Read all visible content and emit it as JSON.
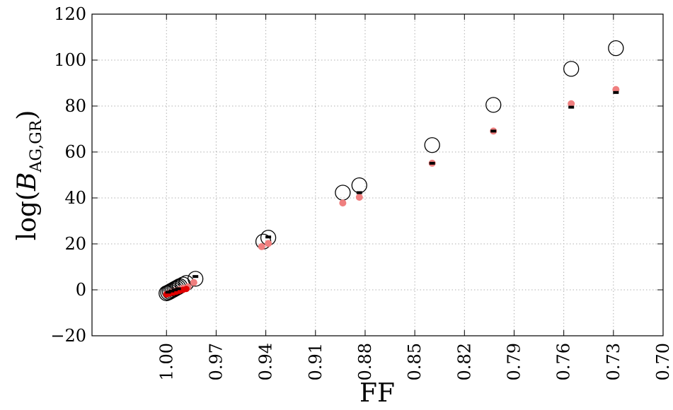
{
  "chart_data": {
    "type": "scatter",
    "xlabel": "FF",
    "ylabel_main": "log(",
    "ylabel_var": "B",
    "ylabel_sub": "AG,GR",
    "ylabel_close": ")",
    "x_reversed": true,
    "xlim": [
      1.045,
      0.7
    ],
    "ylim": [
      -20,
      120
    ],
    "grid": true,
    "xticks": [
      1.0,
      0.97,
      0.94,
      0.91,
      0.88,
      0.85,
      0.82,
      0.79,
      0.76,
      0.73,
      0.7
    ],
    "xtick_labels": [
      "1.00",
      "0.97",
      "0.94",
      "0.91",
      "0.88",
      "0.85",
      "0.82",
      "0.79",
      "0.76",
      "0.73",
      "0.70"
    ],
    "yticks": [
      -20,
      0,
      20,
      40,
      60,
      80,
      100,
      120
    ],
    "ytick_labels": [
      "−20",
      "0",
      "20",
      "40",
      "60",
      "80",
      "100",
      "120"
    ],
    "series": [
      {
        "marker": "open-circle-large",
        "color": "#000000",
        "points": [
          {
            "x": 1.0,
            "y": -1.5
          },
          {
            "x": 0.999,
            "y": -1.2
          },
          {
            "x": 0.998,
            "y": -0.8
          },
          {
            "x": 0.997,
            "y": -0.4
          },
          {
            "x": 0.996,
            "y": 0.0
          },
          {
            "x": 0.995,
            "y": 0.4
          },
          {
            "x": 0.994,
            "y": 0.8
          },
          {
            "x": 0.993,
            "y": 1.2
          },
          {
            "x": 0.992,
            "y": 1.6
          },
          {
            "x": 0.99,
            "y": 2.3
          },
          {
            "x": 0.988,
            "y": 3.0
          },
          {
            "x": 0.9825,
            "y": 4.8
          },
          {
            "x": 0.9415,
            "y": 21.0
          },
          {
            "x": 0.9385,
            "y": 22.7
          },
          {
            "x": 0.8935,
            "y": 42.3
          },
          {
            "x": 0.8835,
            "y": 45.5
          },
          {
            "x": 0.8395,
            "y": 63.0
          },
          {
            "x": 0.8025,
            "y": 80.5
          },
          {
            "x": 0.7555,
            "y": 96.2
          },
          {
            "x": 0.7285,
            "y": 105.2
          }
        ]
      },
      {
        "marker": "filled-circle",
        "color": "#ef7f7f",
        "points": [
          {
            "x": 1.0,
            "y": -1.8
          },
          {
            "x": 0.998,
            "y": -1.3
          },
          {
            "x": 0.996,
            "y": -0.8
          },
          {
            "x": 0.994,
            "y": -0.3
          },
          {
            "x": 0.992,
            "y": 0.2
          },
          {
            "x": 0.99,
            "y": 0.7
          },
          {
            "x": 0.987,
            "y": 1.3
          },
          {
            "x": 0.9835,
            "y": 3.2
          },
          {
            "x": 0.9425,
            "y": 18.8
          },
          {
            "x": 0.9385,
            "y": 20.2
          },
          {
            "x": 0.8935,
            "y": 37.8
          },
          {
            "x": 0.8835,
            "y": 40.3
          },
          {
            "x": 0.8395,
            "y": 55.1
          },
          {
            "x": 0.8025,
            "y": 69.1
          },
          {
            "x": 0.7555,
            "y": 81.0
          },
          {
            "x": 0.7285,
            "y": 87.2
          }
        ]
      },
      {
        "marker": "filled-circle-small",
        "color": "#e00000",
        "points": [
          {
            "x": 1.0,
            "y": -2.0
          },
          {
            "x": 0.998,
            "y": -1.6
          },
          {
            "x": 0.996,
            "y": -1.2
          },
          {
            "x": 0.994,
            "y": -0.8
          },
          {
            "x": 0.992,
            "y": -0.4
          },
          {
            "x": 0.99,
            "y": 0.0
          },
          {
            "x": 0.988,
            "y": 0.4
          }
        ]
      },
      {
        "marker": "black-dash",
        "color": "#000000",
        "points": [
          {
            "x": 0.999,
            "y": -1.0
          },
          {
            "x": 0.997,
            "y": -0.5
          },
          {
            "x": 0.995,
            "y": 0.0
          },
          {
            "x": 0.993,
            "y": 0.5
          },
          {
            "x": 0.9825,
            "y": 5.8
          },
          {
            "x": 0.9385,
            "y": 23.0
          },
          {
            "x": 0.8835,
            "y": 42.3
          },
          {
            "x": 0.8395,
            "y": 55.1
          },
          {
            "x": 0.8025,
            "y": 69.1
          },
          {
            "x": 0.7555,
            "y": 79.5
          },
          {
            "x": 0.7285,
            "y": 85.9
          }
        ]
      }
    ]
  }
}
